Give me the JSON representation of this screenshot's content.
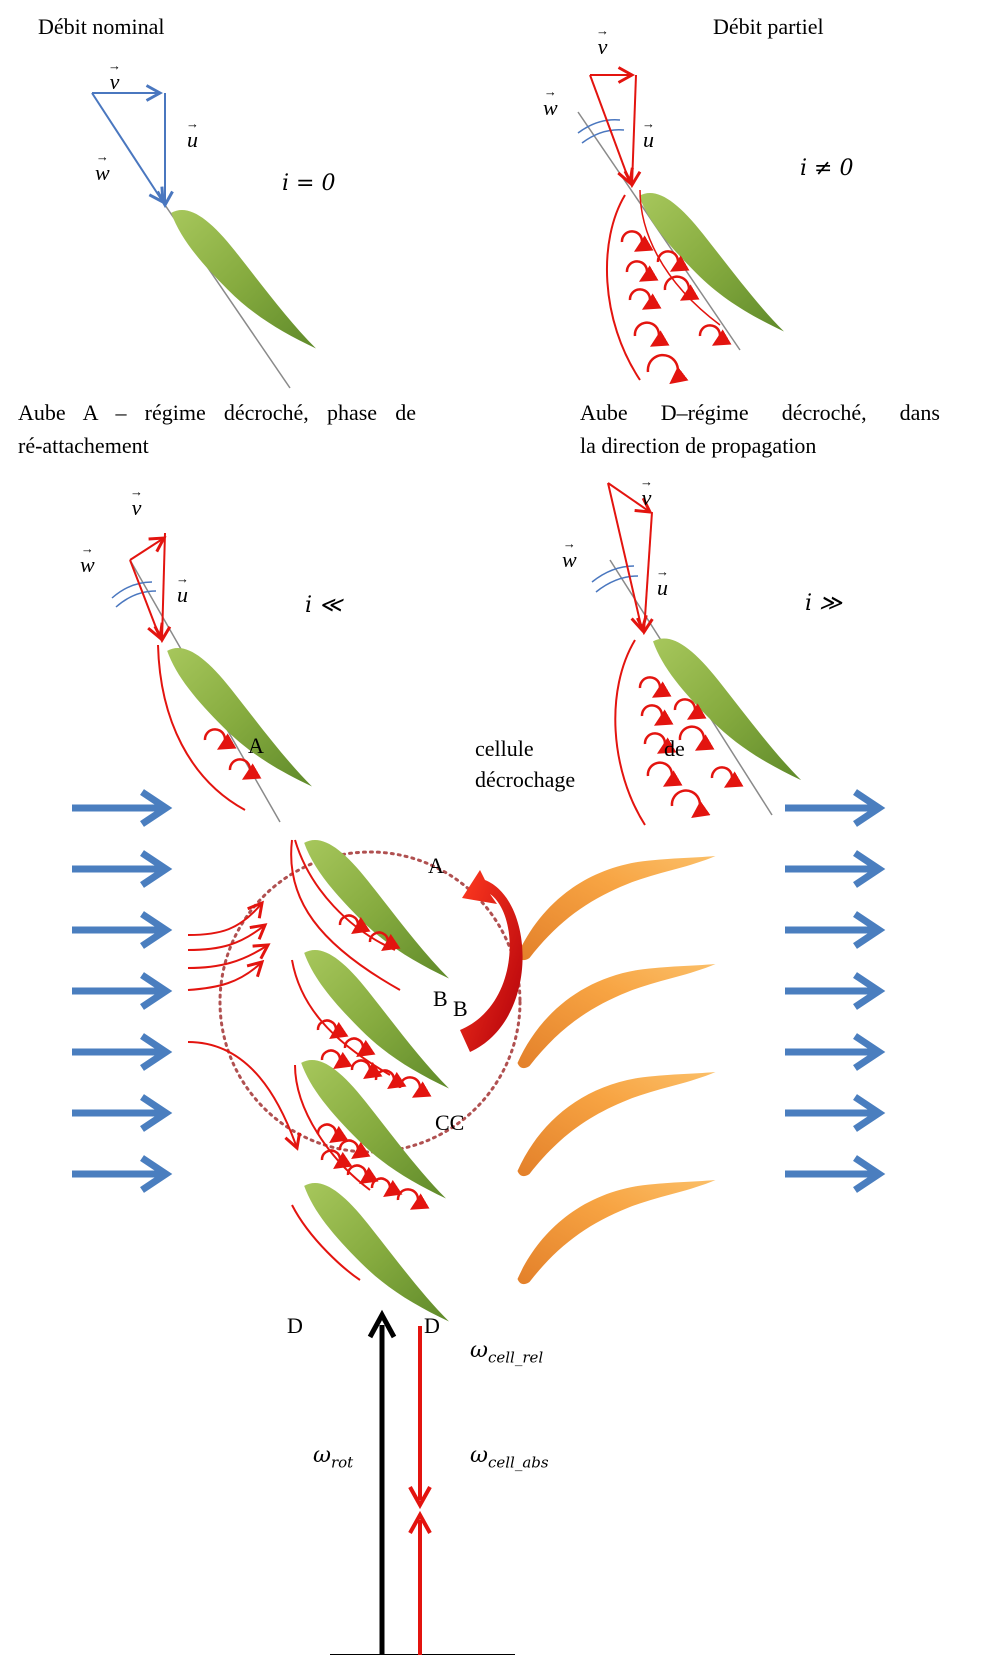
{
  "panels": {
    "nominal": {
      "title": "Débit nominal",
      "v": "v",
      "u": "u",
      "w": "w",
      "incidence": "i = 0"
    },
    "partial": {
      "title": "Débit partiel",
      "v": "v",
      "u": "u",
      "w": "w",
      "incidence": "i ≠ 0"
    },
    "blade_a": {
      "title_line1": "Aube A – régime décroché, phase de",
      "title_line2": "ré-attachement",
      "v": "v",
      "u": "u",
      "w": "w",
      "incidence": "i ≪"
    },
    "blade_d": {
      "title_line1": "Aube D–régime décroché, dans",
      "title_line2": "la direction de propagation",
      "v": "v",
      "u": "u",
      "w": "w",
      "incidence": "i ≫"
    }
  },
  "cascade": {
    "label_A_top": "A",
    "cell_word1": "cellule",
    "cell_word2": "de",
    "cell_word3": "décrochage",
    "label_A_inner": "A",
    "label_B1": "B",
    "label_B2": "B",
    "label_C": "CC",
    "label_D_left": "D",
    "label_D_right": "D",
    "omega_symbol": "ω",
    "omega_cell_rel_sub": "cell_rel",
    "omega_rot_sub": "rot",
    "omega_cell_abs_sub": "cell_abs"
  },
  "colors": {
    "blade_green": "#8db046",
    "rotor_orange": "#f39b3c",
    "flow_blue": "#4a7ebf",
    "stall_red": "#e3140f",
    "nominal_vector_blue": "#4a77bf",
    "circle_dotted": "#b05050"
  }
}
